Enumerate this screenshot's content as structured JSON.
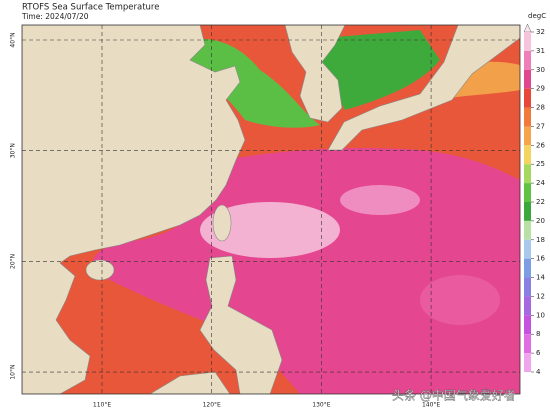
{
  "header": {
    "title": "RTOFS Sea Surface Temperature",
    "time": "Time: 2024/07/20"
  },
  "map": {
    "lat_lines": [
      {
        "value": 40,
        "label": "40°N"
      },
      {
        "value": 30,
        "label": "30°N"
      },
      {
        "value": 20,
        "label": "20°N"
      },
      {
        "value": 10,
        "label": "10°N"
      }
    ],
    "lon_lines": [
      {
        "value": 110,
        "label": "110°E"
      },
      {
        "value": 120,
        "label": "120°E"
      },
      {
        "value": 130,
        "label": "130°E"
      },
      {
        "value": 140,
        "label": "140°E"
      }
    ]
  },
  "colorbar": {
    "unit": "degC",
    "levels": [
      32,
      31,
      30,
      29,
      28,
      27,
      26,
      25,
      24,
      22,
      20,
      18,
      16,
      14,
      12,
      10,
      8,
      6,
      4
    ],
    "colors": [
      "#f6c4dc",
      "#ee7fb8",
      "#e0478f",
      "#e8483a",
      "#ef7a3a",
      "#f5a54a",
      "#f4d460",
      "#a5d85e",
      "#5fc245",
      "#3aa83a",
      "#b9e0a5",
      "#a9c9ec",
      "#7c9fe4",
      "#8a7fe2",
      "#a56ae0",
      "#c553e0",
      "#de6ee2",
      "#f0a6ef"
    ]
  },
  "watermark": "头条 @中国气象爱好者"
}
